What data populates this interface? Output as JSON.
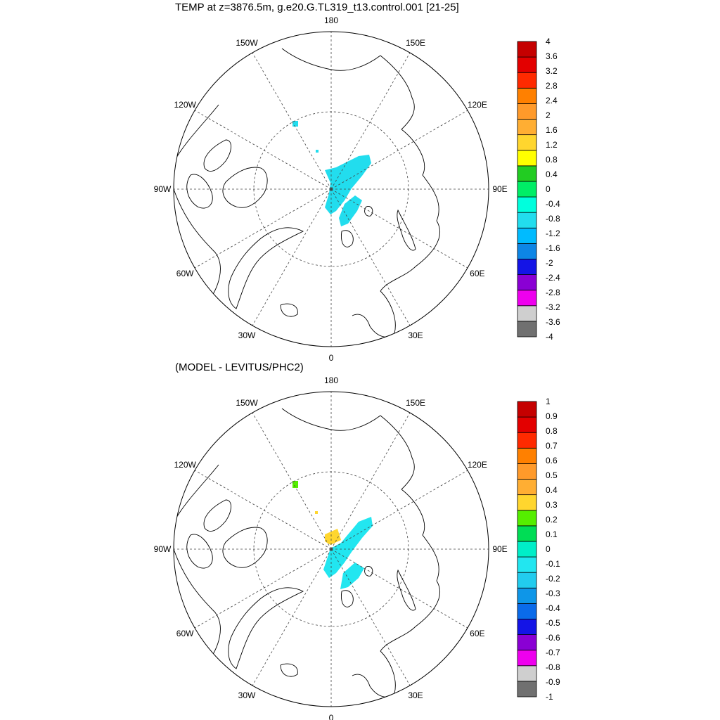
{
  "panels": [
    {
      "title": "TEMP at z=3876.5m, g.e20.G.TL319_t13.control.001 [21-25]",
      "lon_labels": [
        "180",
        "150E",
        "120E",
        "90E",
        "60E",
        "30E",
        "0",
        "30W",
        "60W",
        "90W",
        "120W",
        "150W"
      ],
      "colorbar": {
        "colors": [
          "#707070",
          "#cfcfcf",
          "#ee00ee",
          "#8a00d4",
          "#1414e6",
          "#0d86e6",
          "#00bbff",
          "#22ddee",
          "#00ffdd",
          "#00ee66",
          "#22cc22",
          "#ffff00",
          "#ffd62e",
          "#ffae33",
          "#ff9a2a",
          "#ff8000",
          "#ff2a00",
          "#e30000",
          "#c50000"
        ],
        "labels": [
          "-4",
          "-3.6",
          "-3.2",
          "-2.8",
          "-2.4",
          "-2",
          "-1.6",
          "-1.2",
          "-0.8",
          "-0.4",
          "0",
          "0.4",
          "0.8",
          "1.2",
          "1.6",
          "2",
          "2.4",
          "2.8",
          "3.2",
          "3.6",
          "4"
        ]
      }
    },
    {
      "title": "(MODEL - LEVITUS/PHC2)",
      "lon_labels": [
        "180",
        "150E",
        "120E",
        "90E",
        "60E",
        "30E",
        "0",
        "30W",
        "60W",
        "90W",
        "120W",
        "150W"
      ],
      "colorbar": {
        "colors": [
          "#707070",
          "#cfcfcf",
          "#ee00ee",
          "#8a00d4",
          "#1414e6",
          "#0a6bea",
          "#0e96e8",
          "#22ccee",
          "#22e6f0",
          "#00eec8",
          "#00dd55",
          "#55ee00",
          "#ffd62e",
          "#ffae33",
          "#ff9a2a",
          "#ff8000",
          "#ff2a00",
          "#e30000",
          "#c50000"
        ],
        "labels": [
          "-1",
          "-0.9",
          "-0.8",
          "-0.7",
          "-0.6",
          "-0.5",
          "-0.4",
          "-0.3",
          "-0.2",
          "-0.1",
          "0",
          "0.1",
          "0.2",
          "0.3",
          "0.4",
          "0.5",
          "0.6",
          "0.7",
          "0.8",
          "0.9",
          "1"
        ]
      }
    }
  ]
}
